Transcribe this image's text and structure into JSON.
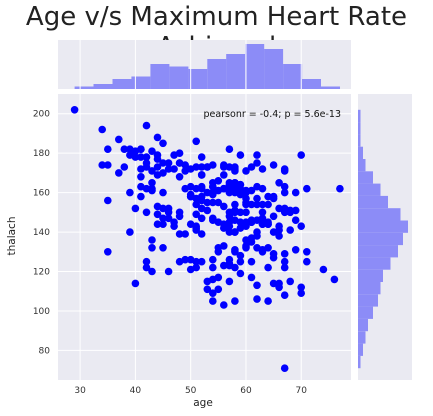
{
  "chart_data": {
    "type": "scatter",
    "title": "Age v/s Maximum Heart Rate Achieved",
    "xlabel": "age",
    "ylabel": "thalach",
    "xlim": [
      26,
      79
    ],
    "ylim": [
      65,
      210
    ],
    "xticks": [
      "30",
      "40",
      "50",
      "60",
      "70"
    ],
    "yticks": [
      "80",
      "100",
      "120",
      "140",
      "160",
      "180",
      "200"
    ],
    "annotation": "pearsonr = -0.4; p = 5.6e-13",
    "grid": true,
    "colors": {
      "points": "#0000ff",
      "hist": "#8c8cf7",
      "plot_bg": "#eaeaf2",
      "grid": "#ffffff"
    },
    "points": [
      [
        29,
        202
      ],
      [
        34,
        192
      ],
      [
        34,
        174
      ],
      [
        35,
        174
      ],
      [
        35,
        182
      ],
      [
        35,
        130
      ],
      [
        35,
        156
      ],
      [
        37,
        187
      ],
      [
        37,
        170
      ],
      [
        38,
        173
      ],
      [
        38,
        182
      ],
      [
        39,
        182
      ],
      [
        39,
        179
      ],
      [
        39,
        140
      ],
      [
        39,
        160
      ],
      [
        40,
        178
      ],
      [
        40,
        181
      ],
      [
        40,
        114
      ],
      [
        40,
        152
      ],
      [
        41,
        172
      ],
      [
        41,
        168
      ],
      [
        41,
        163
      ],
      [
        41,
        158
      ],
      [
        41,
        182
      ],
      [
        41,
        178
      ],
      [
        41,
        182
      ],
      [
        42,
        173
      ],
      [
        42,
        178
      ],
      [
        42,
        175
      ],
      [
        42,
        162
      ],
      [
        42,
        125
      ],
      [
        42,
        122
      ],
      [
        42,
        150
      ],
      [
        42,
        194
      ],
      [
        43,
        132
      ],
      [
        43,
        165
      ],
      [
        43,
        162
      ],
      [
        43,
        171
      ],
      [
        43,
        120
      ],
      [
        43,
        161
      ],
      [
        43,
        136
      ],
      [
        43,
        181
      ],
      [
        44,
        173
      ],
      [
        44,
        188
      ],
      [
        44,
        149
      ],
      [
        44,
        153
      ],
      [
        44,
        179
      ],
      [
        44,
        177
      ],
      [
        44,
        144
      ],
      [
        44,
        169
      ],
      [
        45,
        175
      ],
      [
        45,
        152
      ],
      [
        45,
        132
      ],
      [
        45,
        170
      ],
      [
        45,
        185
      ],
      [
        45,
        144
      ],
      [
        45,
        147
      ],
      [
        45,
        160
      ],
      [
        46,
        172
      ],
      [
        46,
        147
      ],
      [
        46,
        152
      ],
      [
        46,
        175
      ],
      [
        46,
        150
      ],
      [
        46,
        120
      ],
      [
        47,
        143
      ],
      [
        47,
        179
      ],
      [
        47,
        145
      ],
      [
        47,
        172
      ],
      [
        48,
        175
      ],
      [
        48,
        150
      ],
      [
        48,
        168
      ],
      [
        48,
        180
      ],
      [
        48,
        139
      ],
      [
        48,
        125
      ],
      [
        48,
        148
      ],
      [
        48,
        175
      ],
      [
        49,
        171
      ],
      [
        49,
        174
      ],
      [
        49,
        126
      ],
      [
        49,
        162
      ],
      [
        49,
        139
      ],
      [
        50,
        158
      ],
      [
        50,
        163
      ],
      [
        50,
        172
      ],
      [
        50,
        159
      ],
      [
        50,
        121
      ],
      [
        50,
        144
      ],
      [
        50,
        126
      ],
      [
        50,
        158
      ],
      [
        51,
        125
      ],
      [
        51,
        142
      ],
      [
        51,
        186
      ],
      [
        51,
        143
      ],
      [
        51,
        162
      ],
      [
        51,
        122
      ],
      [
        51,
        149
      ],
      [
        51,
        173
      ],
      [
        51,
        154
      ],
      [
        51,
        157
      ],
      [
        51,
        141
      ],
      [
        52,
        162
      ],
      [
        52,
        158
      ],
      [
        52,
        169
      ],
      [
        52,
        169
      ],
      [
        52,
        163
      ],
      [
        52,
        173
      ],
      [
        52,
        156
      ],
      [
        52,
        147
      ],
      [
        52,
        178
      ],
      [
        52,
        125
      ],
      [
        52,
        139
      ],
      [
        52,
        152
      ],
      [
        53,
        155
      ],
      [
        53,
        173
      ],
      [
        53,
        115
      ],
      [
        53,
        160
      ],
      [
        53,
        151
      ],
      [
        53,
        111
      ],
      [
        53,
        173
      ],
      [
        54,
        163
      ],
      [
        54,
        160
      ],
      [
        54,
        174
      ],
      [
        54,
        116
      ],
      [
        54,
        155
      ],
      [
        54,
        165
      ],
      [
        54,
        105
      ],
      [
        54,
        159
      ],
      [
        54,
        147
      ],
      [
        54,
        109
      ],
      [
        54,
        163
      ],
      [
        54,
        122
      ],
      [
        54,
        126
      ],
      [
        54,
        146
      ],
      [
        55,
        155
      ],
      [
        55,
        166
      ],
      [
        55,
        161
      ],
      [
        55,
        130
      ],
      [
        55,
        132
      ],
      [
        55,
        145
      ],
      [
        55,
        117
      ],
      [
        55,
        111
      ],
      [
        56,
        153
      ],
      [
        56,
        162
      ],
      [
        56,
        144
      ],
      [
        56,
        169
      ],
      [
        56,
        142
      ],
      [
        56,
        162
      ],
      [
        56,
        174
      ],
      [
        56,
        103
      ],
      [
        56,
        173
      ],
      [
        56,
        123
      ],
      [
        56,
        133
      ],
      [
        57,
        163
      ],
      [
        57,
        150
      ],
      [
        57,
        148
      ],
      [
        57,
        164
      ],
      [
        57,
        173
      ],
      [
        57,
        165
      ],
      [
        57,
        182
      ],
      [
        57,
        143
      ],
      [
        57,
        160
      ],
      [
        57,
        140
      ],
      [
        57,
        145
      ],
      [
        57,
        126
      ],
      [
        57,
        123
      ],
      [
        57,
        115
      ],
      [
        57,
        163
      ],
      [
        57,
        124
      ],
      [
        58,
        172
      ],
      [
        58,
        162
      ],
      [
        58,
        140
      ],
      [
        58,
        165
      ],
      [
        58,
        173
      ],
      [
        58,
        160
      ],
      [
        58,
        150
      ],
      [
        58,
        131
      ],
      [
        58,
        105
      ],
      [
        58,
        154
      ],
      [
        58,
        140
      ],
      [
        58,
        151
      ],
      [
        58,
        122
      ],
      [
        58,
        130
      ],
      [
        58,
        146
      ],
      [
        58,
        165
      ],
      [
        58,
        171
      ],
      [
        59,
        159
      ],
      [
        59,
        161
      ],
      [
        59,
        145
      ],
      [
        59,
        162
      ],
      [
        59,
        179
      ],
      [
        59,
        125
      ],
      [
        59,
        128
      ],
      [
        59,
        150
      ],
      [
        59,
        164
      ],
      [
        59,
        142
      ],
      [
        59,
        119
      ],
      [
        59,
        160
      ],
      [
        59,
        164
      ],
      [
        60,
        150
      ],
      [
        60,
        171
      ],
      [
        60,
        160
      ],
      [
        60,
        143
      ],
      [
        60,
        157
      ],
      [
        60,
        154
      ],
      [
        60,
        155
      ],
      [
        60,
        133
      ],
      [
        60,
        136
      ],
      [
        60,
        161
      ],
      [
        60,
        145
      ],
      [
        60,
        132
      ],
      [
        61,
        145
      ],
      [
        61,
        125
      ],
      [
        61,
        154
      ],
      [
        61,
        137
      ],
      [
        61,
        161
      ],
      [
        61,
        173
      ],
      [
        61,
        145
      ],
      [
        61,
        117
      ],
      [
        61,
        135
      ],
      [
        61,
        146
      ],
      [
        62,
        157
      ],
      [
        62,
        163
      ],
      [
        62,
        154
      ],
      [
        62,
        146
      ],
      [
        62,
        113
      ],
      [
        62,
        106
      ],
      [
        62,
        138
      ],
      [
        62,
        179
      ],
      [
        62,
        175
      ],
      [
        62,
        140
      ],
      [
        62,
        132
      ],
      [
        63,
        162
      ],
      [
        63,
        147
      ],
      [
        63,
        131
      ],
      [
        63,
        172
      ],
      [
        63,
        144
      ],
      [
        63,
        150
      ],
      [
        63,
        144
      ],
      [
        63,
        154
      ],
      [
        63,
        130
      ],
      [
        64,
        158
      ],
      [
        64,
        144
      ],
      [
        64,
        105
      ],
      [
        64,
        145
      ],
      [
        64,
        122
      ],
      [
        64,
        144
      ],
      [
        64,
        154
      ],
      [
        64,
        132
      ],
      [
        65,
        158
      ],
      [
        65,
        148
      ],
      [
        65,
        157
      ],
      [
        65,
        129
      ],
      [
        65,
        140
      ],
      [
        65,
        174
      ],
      [
        65,
        114
      ],
      [
        65,
        127
      ],
      [
        66,
        114
      ],
      [
        66,
        165
      ],
      [
        66,
        138
      ],
      [
        66,
        152
      ],
      [
        66,
        143
      ],
      [
        66,
        141
      ],
      [
        66,
        112
      ],
      [
        67,
        163
      ],
      [
        67,
        171
      ],
      [
        67,
        129
      ],
      [
        67,
        108
      ],
      [
        67,
        150
      ],
      [
        67,
        125
      ],
      [
        67,
        172
      ],
      [
        67,
        160
      ],
      [
        67,
        152
      ],
      [
        67,
        122
      ],
      [
        67,
        71
      ],
      [
        68,
        115
      ],
      [
        68,
        151
      ],
      [
        68,
        150
      ],
      [
        68,
        141
      ],
      [
        69,
        146
      ],
      [
        69,
        151
      ],
      [
        69,
        131
      ],
      [
        69,
        160
      ],
      [
        70,
        112
      ],
      [
        70,
        179
      ],
      [
        70,
        109
      ],
      [
        70,
        143
      ],
      [
        71,
        162
      ],
      [
        71,
        125
      ],
      [
        71,
        130
      ],
      [
        74,
        121
      ],
      [
        76,
        116
      ],
      [
        77,
        162
      ]
    ],
    "hist_x_counts": [
      1,
      2,
      4,
      5,
      10,
      9,
      8,
      12,
      14,
      18,
      16,
      10,
      4,
      1
    ],
    "hist_y_counts": [
      1,
      2,
      3,
      4,
      6,
      8,
      9,
      10,
      13,
      16,
      18,
      20,
      17,
      12,
      9,
      6,
      3,
      2,
      1,
      1,
      1
    ]
  }
}
